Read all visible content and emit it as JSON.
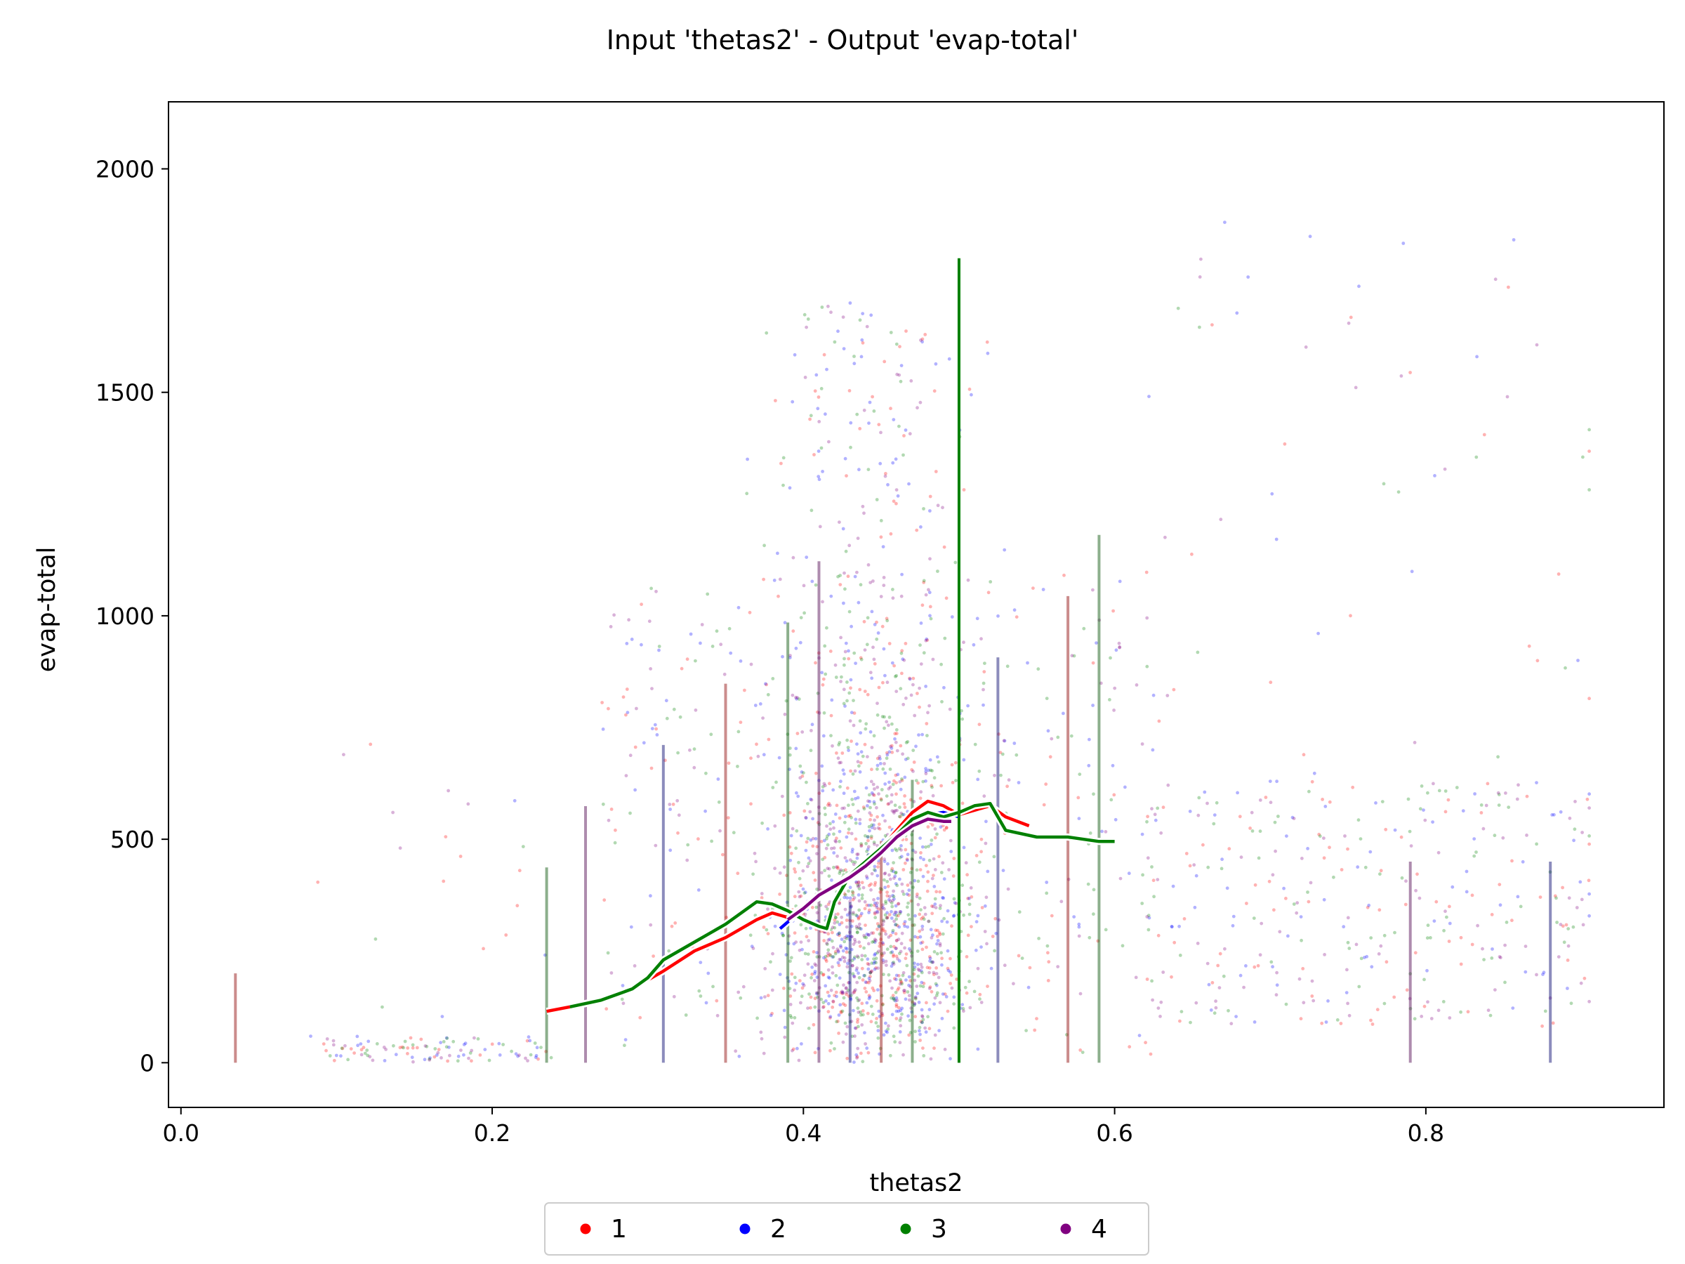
{
  "chart_data": {
    "type": "scatter",
    "title": "Input 'thetas2' - Output 'evap-total'",
    "xlabel": "thetas2",
    "ylabel": "evap-total",
    "xlim": [
      -0.008,
      0.953
    ],
    "ylim": [
      -100,
      2150
    ],
    "xticks": [
      0.0,
      0.2,
      0.4,
      0.6,
      0.8
    ],
    "xtick_labels": [
      "0.0",
      "0.2",
      "0.4",
      "0.6",
      "0.8"
    ],
    "yticks": [
      0,
      500,
      1000,
      1500,
      2000
    ],
    "ytick_labels": [
      "0",
      "500",
      "1000",
      "1500",
      "2000"
    ],
    "grid": false,
    "legend": {
      "placement": "bottom-center, below axes",
      "columns": 4
    },
    "scatter_note": "dense cloud of semi-transparent points for each series; main mass x 0.33-0.55, y 0-1900",
    "series": [
      {
        "name": "1",
        "color": "#ff0000",
        "trend_line": {
          "x": [
            0.235,
            0.25,
            0.27,
            0.29,
            0.31,
            0.33,
            0.35,
            0.37,
            0.38,
            0.39,
            0.4,
            0.41,
            0.42,
            0.43,
            0.44,
            0.45,
            0.46,
            0.47,
            0.48,
            0.49,
            0.5,
            0.51,
            0.52,
            0.53,
            0.545
          ],
          "y": [
            115,
            125,
            140,
            165,
            205,
            250,
            280,
            320,
            335,
            325,
            350,
            370,
            395,
            420,
            450,
            480,
            520,
            560,
            585,
            575,
            555,
            565,
            575,
            550,
            530
          ]
        }
      },
      {
        "name": "2",
        "color": "#0000ff",
        "trend_line": {
          "x": [
            0.385,
            0.39,
            0.4,
            0.41,
            0.42,
            0.43,
            0.44,
            0.45,
            0.46,
            0.47,
            0.48,
            0.49,
            0.5
          ],
          "y": [
            300,
            315,
            345,
            375,
            395,
            420,
            445,
            470,
            500,
            530,
            555,
            560,
            550
          ]
        }
      },
      {
        "name": "3",
        "color": "#008000",
        "trend_line": {
          "x": [
            0.25,
            0.27,
            0.29,
            0.3,
            0.31,
            0.33,
            0.35,
            0.37,
            0.38,
            0.39,
            0.4,
            0.41,
            0.415,
            0.42,
            0.43,
            0.44,
            0.45,
            0.46,
            0.47,
            0.48,
            0.49,
            0.5,
            0.51,
            0.52,
            0.53,
            0.55,
            0.57,
            0.59,
            0.6
          ],
          "y": [
            125,
            140,
            165,
            190,
            230,
            270,
            310,
            360,
            355,
            340,
            320,
            305,
            300,
            360,
            420,
            450,
            480,
            510,
            545,
            560,
            550,
            560,
            575,
            580,
            520,
            505,
            505,
            495,
            495
          ]
        }
      },
      {
        "name": "4",
        "color": "#800080",
        "trend_line": {
          "x": [
            0.39,
            0.4,
            0.41,
            0.42,
            0.43,
            0.44,
            0.45,
            0.46,
            0.47,
            0.48,
            0.49,
            0.495
          ],
          "y": [
            320,
            345,
            375,
            395,
            415,
            440,
            470,
            505,
            530,
            545,
            540,
            540
          ]
        }
      }
    ]
  }
}
